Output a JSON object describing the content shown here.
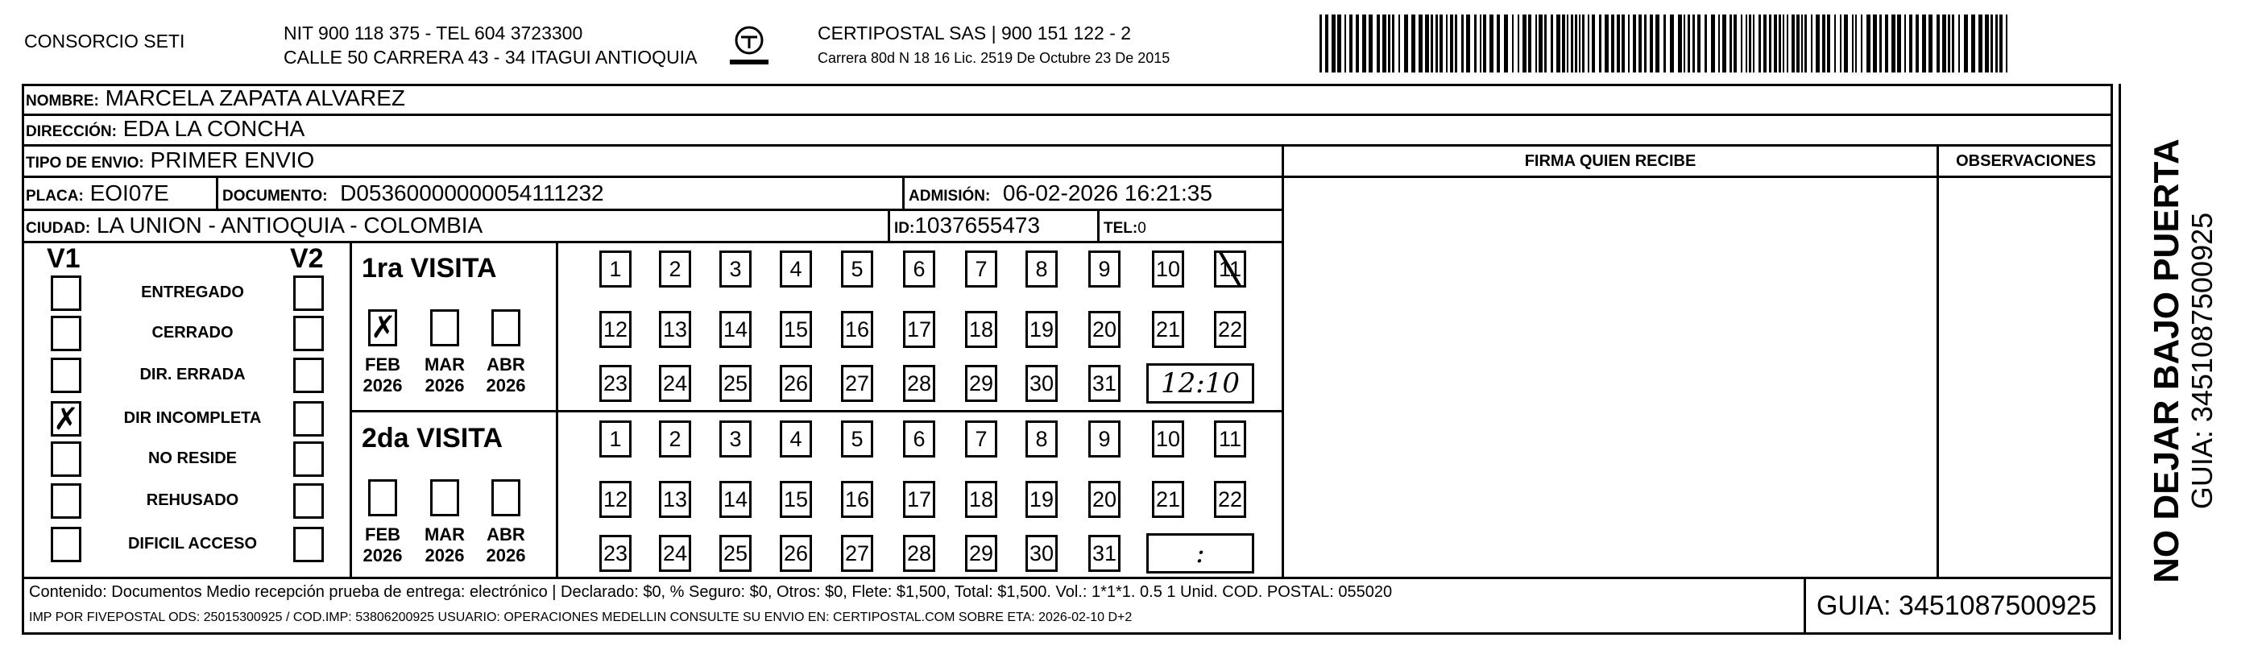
{
  "header": {
    "company": "CONSORCIO SETI",
    "nit_line": "NIT 900 118 375 - TEL 604 3723300",
    "address_line": "CALLE 50 CARRERA 43 - 34 ITAGUI ANTIOQUIA",
    "logo_text": "CERTIPOSTAL",
    "courier_line": "CERTIPOSTAL SAS | 900 151 122 - 2",
    "license_line": "Carrera 80d N 18 16  Lic. 2519 De Octubre 23 De 2015",
    "barcode_icon": "barcode"
  },
  "recipient": {
    "nombre_label": "NOMBRE:",
    "nombre": "MARCELA ZAPATA ALVAREZ",
    "direccion_label": "DIRECCIÓN:",
    "direccion": "EDA LA CONCHA",
    "tipo_label": "TIPO DE ENVIO:",
    "tipo": "PRIMER ENVIO",
    "placa_label": "PLACA:",
    "placa": "EOI07E",
    "documento_label": "DOCUMENTO:",
    "documento": "D05360000000054111232",
    "admision_label": "ADMISIÓN:",
    "admision": "06-02-2026 16:21:35",
    "ciudad_label": "CIUDAD:",
    "ciudad": "LA UNION - ANTIOQUIA - COLOMBIA",
    "id_label": "ID:",
    "id": "1037655473",
    "tel_label": "TEL:",
    "tel": "0"
  },
  "columns": {
    "firma": "FIRMA QUIEN RECIBE",
    "observaciones": "OBSERVACIONES"
  },
  "status": {
    "v1_label": "V1",
    "v2_label": "V2",
    "items": [
      {
        "label": "ENTREGADO",
        "v1": false,
        "v2": false
      },
      {
        "label": "CERRADO",
        "v1": false,
        "v2": false
      },
      {
        "label": "DIR. ERRADA",
        "v1": false,
        "v2": false
      },
      {
        "label": "DIR INCOMPLETA",
        "v1": true,
        "v2": false
      },
      {
        "label": "NO RESIDE",
        "v1": false,
        "v2": false
      },
      {
        "label": "REHUSADO",
        "v1": false,
        "v2": false
      },
      {
        "label": "DIFICIL ACCESO",
        "v1": false,
        "v2": false
      }
    ]
  },
  "visits": [
    {
      "title": "1ra VISITA",
      "months": [
        {
          "label": "FEB",
          "year": "2026",
          "checked": true
        },
        {
          "label": "MAR",
          "year": "2026",
          "checked": false
        },
        {
          "label": "ABR",
          "year": "2026",
          "checked": false
        }
      ],
      "days": [
        "1",
        "2",
        "3",
        "4",
        "5",
        "6",
        "7",
        "8",
        "9",
        "10",
        "11",
        "12",
        "13",
        "14",
        "15",
        "16",
        "17",
        "18",
        "19",
        "20",
        "21",
        "22",
        "23",
        "24",
        "25",
        "26",
        "27",
        "28",
        "29",
        "30",
        "31"
      ],
      "checked_day": "11",
      "time": "12:10"
    },
    {
      "title": "2da VISITA",
      "months": [
        {
          "label": "FEB",
          "year": "2026",
          "checked": false
        },
        {
          "label": "MAR",
          "year": "2026",
          "checked": false
        },
        {
          "label": "ABR",
          "year": "2026",
          "checked": false
        }
      ],
      "days": [
        "1",
        "2",
        "3",
        "4",
        "5",
        "6",
        "7",
        "8",
        "9",
        "10",
        "11",
        "12",
        "13",
        "14",
        "15",
        "16",
        "17",
        "18",
        "19",
        "20",
        "21",
        "22",
        "23",
        "24",
        "25",
        "26",
        "27",
        "28",
        "29",
        "30",
        "31"
      ],
      "checked_day": "",
      "time": ":"
    }
  ],
  "footer": {
    "contenido": "Contenido: Documentos Medio recepción prueba de entrega: electrónico | Declarado: $0, % Seguro: $0, Otros: $0, Flete: $1,500, Total: $1,500. Vol.: 1*1*1. 0.5  1 Unid. COD. POSTAL: 055020",
    "imp": "IMP POR FIVEPOSTAL ODS: 25015300925 / COD.IMP: 53806200925 USUARIO: OPERACIONES MEDELLIN CONSULTE SU ENVIO EN: CERTIPOSTAL.COM SOBRE ETA: 2026-02-10 D+2",
    "guia": "GUIA: 3451087500925"
  },
  "side": {
    "warning": "NO DEJAR BAJO PUERTA",
    "guia": "GUIA: 3451087500925"
  }
}
